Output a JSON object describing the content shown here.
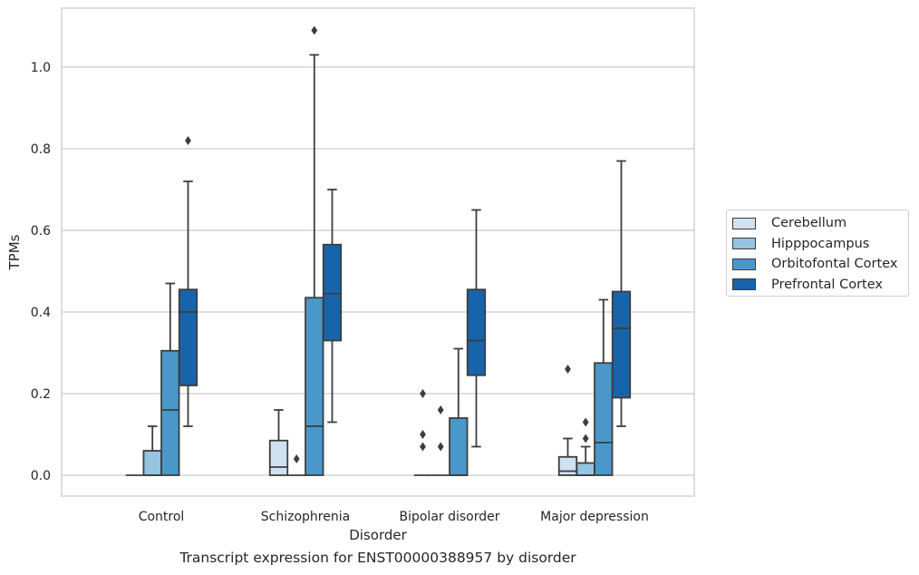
{
  "chart_data": {
    "type": "box",
    "title": "Transcript expression for ENST00000388957 by disorder",
    "xlabel": "Disorder",
    "ylabel": "TPMs",
    "ylim": [
      -0.05,
      1.15
    ],
    "yticks": [
      "0.0",
      "0.2",
      "0.4",
      "0.6",
      "0.8",
      "1.0"
    ],
    "grid": true,
    "legend_position": "right",
    "categories": [
      "Control",
      "Schizophrenia",
      "Bipolar disorder",
      "Major depression"
    ],
    "series": [
      {
        "name": "Cerebellum",
        "color": "#d0e1f2",
        "boxes": [
          {
            "whislo": 0.0,
            "q1": 0.0,
            "med": 0.0,
            "q3": 0.0,
            "whishi": 0.0,
            "fliers": []
          },
          {
            "whislo": 0.0,
            "q1": 0.0,
            "med": 0.02,
            "q3": 0.085,
            "whishi": 0.16,
            "fliers": []
          },
          {
            "whislo": 0.0,
            "q1": 0.0,
            "med": 0.0,
            "q3": 0.0,
            "whishi": 0.0,
            "fliers": [
              0.07,
              0.1,
              0.2
            ]
          },
          {
            "whislo": 0.0,
            "q1": 0.0,
            "med": 0.01,
            "q3": 0.045,
            "whishi": 0.09,
            "fliers": [
              0.26
            ]
          }
        ]
      },
      {
        "name": "Hipppocampus",
        "color": "#94c4df",
        "boxes": [
          {
            "whislo": 0.0,
            "q1": 0.0,
            "med": 0.0,
            "q3": 0.06,
            "whishi": 0.12,
            "fliers": []
          },
          {
            "whislo": 0.0,
            "q1": 0.0,
            "med": 0.0,
            "q3": 0.0,
            "whishi": 0.0,
            "fliers": [
              0.04
            ]
          },
          {
            "whislo": 0.0,
            "q1": 0.0,
            "med": 0.0,
            "q3": 0.0,
            "whishi": 0.0,
            "fliers": [
              0.07,
              0.16
            ]
          },
          {
            "whislo": 0.0,
            "q1": 0.0,
            "med": 0.0,
            "q3": 0.03,
            "whishi": 0.07,
            "fliers": [
              0.09,
              0.13
            ]
          }
        ]
      },
      {
        "name": "Orbitofontal Cortex",
        "color": "#4a98c9",
        "boxes": [
          {
            "whislo": 0.0,
            "q1": 0.0,
            "med": 0.16,
            "q3": 0.305,
            "whishi": 0.47,
            "fliers": []
          },
          {
            "whislo": 0.0,
            "q1": 0.0,
            "med": 0.12,
            "q3": 0.435,
            "whishi": 1.03,
            "fliers": [
              1.09
            ]
          },
          {
            "whislo": 0.0,
            "q1": 0.0,
            "med": 0.0,
            "q3": 0.14,
            "whishi": 0.31,
            "fliers": []
          },
          {
            "whislo": 0.0,
            "q1": 0.0,
            "med": 0.08,
            "q3": 0.275,
            "whishi": 0.43,
            "fliers": []
          }
        ]
      },
      {
        "name": "Prefrontal Cortex",
        "color": "#1764ab",
        "boxes": [
          {
            "whislo": 0.12,
            "q1": 0.22,
            "med": 0.4,
            "q3": 0.455,
            "whishi": 0.72,
            "fliers": [
              0.82
            ]
          },
          {
            "whislo": 0.13,
            "q1": 0.33,
            "med": 0.445,
            "q3": 0.565,
            "whishi": 0.7,
            "fliers": []
          },
          {
            "whislo": 0.07,
            "q1": 0.245,
            "med": 0.33,
            "q3": 0.455,
            "whishi": 0.65,
            "fliers": []
          },
          {
            "whislo": 0.12,
            "q1": 0.19,
            "med": 0.36,
            "q3": 0.45,
            "whishi": 0.77,
            "fliers": []
          }
        ]
      }
    ]
  }
}
